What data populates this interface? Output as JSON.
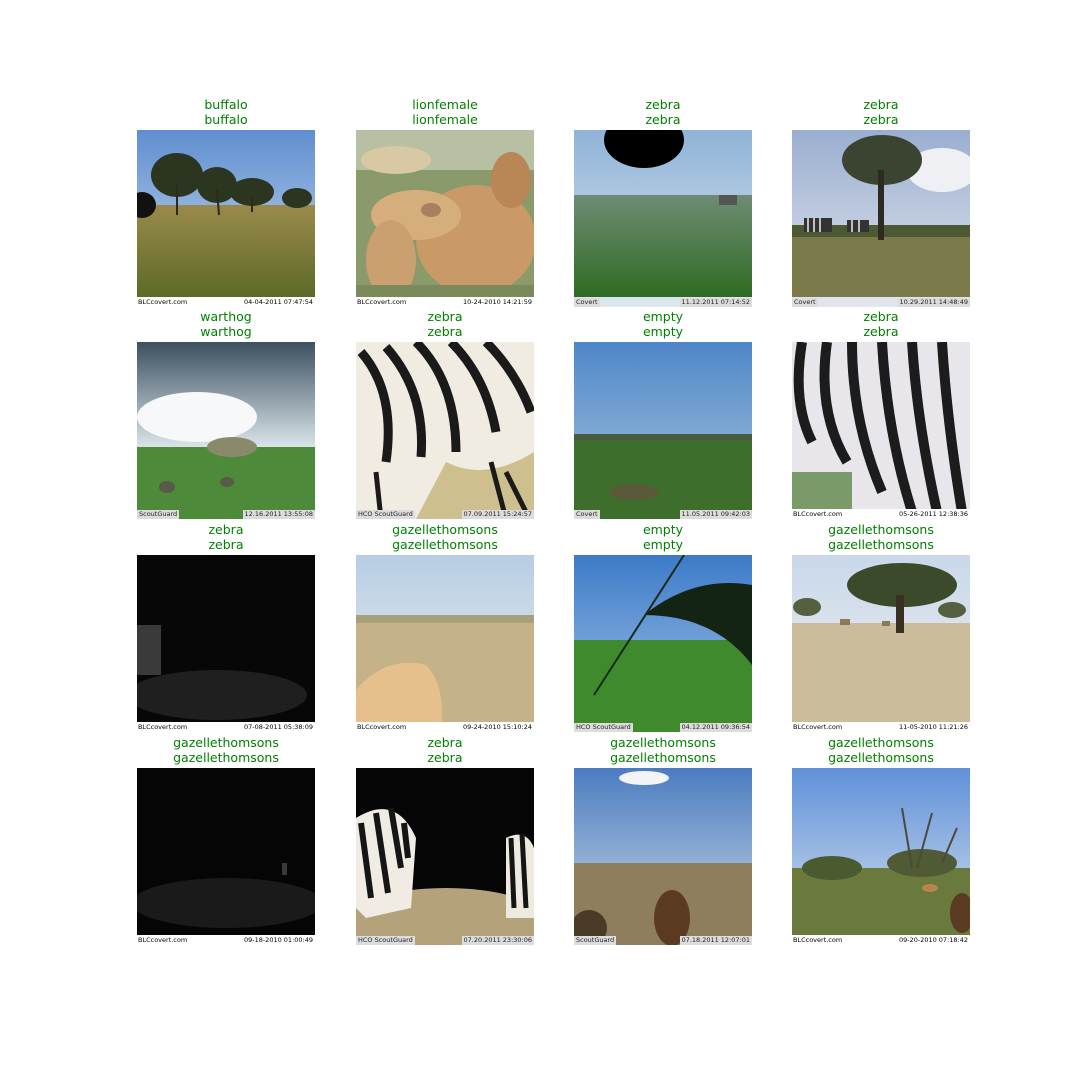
{
  "grid": {
    "cells": [
      {
        "true_label": "buffalo",
        "pred_label": "buffalo",
        "brand": "BLCcovert.com",
        "stamp": "04-04-2011  07:47:54"
      },
      {
        "true_label": "lionfemale",
        "pred_label": "lionfemale",
        "brand": "BLCcovert.com",
        "stamp": "10-24-2010  14:21:59"
      },
      {
        "true_label": "zebra",
        "pred_label": "zebra",
        "brand": "Covert",
        "stamp": "11.12.2011 07:14:52"
      },
      {
        "true_label": "zebra",
        "pred_label": "zebra",
        "brand": "Covert",
        "stamp": "10.29.2011 14:48:49"
      },
      {
        "true_label": "warthog",
        "pred_label": "warthog",
        "brand": "ScoutGuard",
        "stamp": "12.16.2011 13:55:08"
      },
      {
        "true_label": "zebra",
        "pred_label": "zebra",
        "brand": "HCO ScoutGuard",
        "stamp": "07.09.2011 15:24:57"
      },
      {
        "true_label": "empty",
        "pred_label": "empty",
        "brand": "Covert",
        "stamp": "11.05.2011 09:42:03"
      },
      {
        "true_label": "zebra",
        "pred_label": "zebra",
        "brand": "BLCcovert.com",
        "stamp": "05-26-2011  12:38:36"
      },
      {
        "true_label": "zebra",
        "pred_label": "zebra",
        "brand": "BLCcovert.com",
        "stamp": "07-08-2011  05:38:09"
      },
      {
        "true_label": "gazellethomsons",
        "pred_label": "gazellethomsons",
        "brand": "BLCcovert.com",
        "stamp": "09-24-2010  15:10:24"
      },
      {
        "true_label": "empty",
        "pred_label": "empty",
        "brand": "HCO ScoutGuard",
        "stamp": "04.12.2011 09:36:54"
      },
      {
        "true_label": "gazellethomsons",
        "pred_label": "gazellethomsons",
        "brand": "BLCcovert.com",
        "stamp": "11-05-2010  11:21:26"
      },
      {
        "true_label": "gazellethomsons",
        "pred_label": "gazellethomsons",
        "brand": "BLCcovert.com",
        "stamp": "09-18-2010  01:00:49"
      },
      {
        "true_label": "zebra",
        "pred_label": "zebra",
        "brand": "HCO ScoutGuard",
        "stamp": "07.20.2011 23:30:06"
      },
      {
        "true_label": "gazellethomsons",
        "pred_label": "gazellethomsons",
        "brand": "ScoutGuard",
        "stamp": "07.18.2011 12:07:01"
      },
      {
        "true_label": "gazellethomsons",
        "pred_label": "gazellethomsons",
        "brand": "BLCcovert.com",
        "stamp": "09-20-2010  07:18:42"
      }
    ]
  },
  "colors": {
    "label_correct": "#008000",
    "background": "#ffffff"
  }
}
